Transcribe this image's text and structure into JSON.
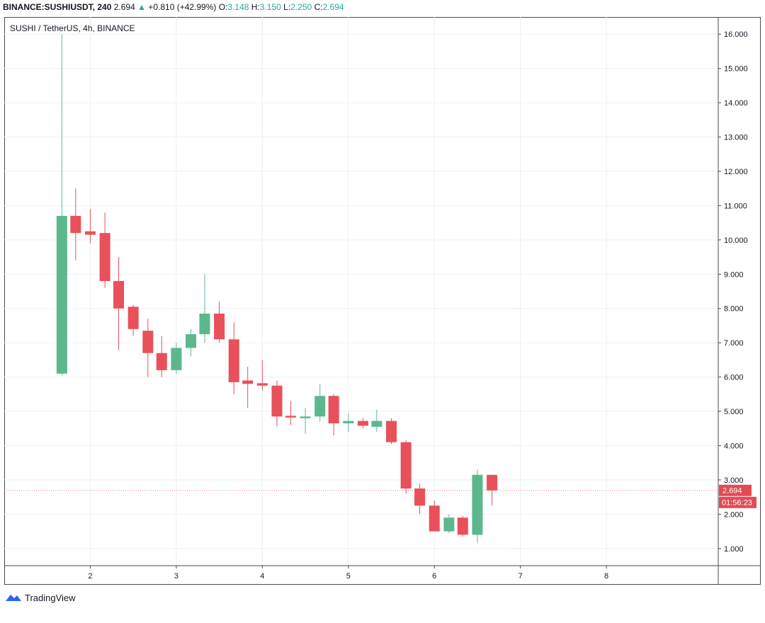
{
  "header": {
    "symbol": "BINANCE:SUSHIUSDT, 240",
    "last": "2.694",
    "change": "+0.810 (+42.99%)",
    "open_label": "O:",
    "open_value": "3.148",
    "high_label": "H:",
    "high_value": "3.150",
    "low_label": "L:",
    "low_value": "2.250",
    "close_label": "C:",
    "close_value": "2.694"
  },
  "brand": {
    "name": "TradingView"
  },
  "colors": {
    "up": "#5cb88c",
    "down": "#e8505b",
    "grid": "#eef0f3",
    "axis": "#4a4a4a",
    "price_tag": "#e24a55"
  },
  "chart_data": {
    "type": "candlestick",
    "title": "SUSHI / TetherUS, 4h, BINANCE",
    "ylim": [
      0.5,
      16.5
    ],
    "xlim": [
      1.0,
      9.3
    ],
    "y_ticks": [
      1,
      2,
      3,
      4,
      5,
      6,
      7,
      8,
      9,
      10,
      11,
      12,
      13,
      14,
      15,
      16
    ],
    "y_tick_labels": [
      "1.000",
      "2.000",
      "3.000",
      "4.000",
      "5.000",
      "6.000",
      "7.000",
      "8.000",
      "9.000",
      "10.000",
      "11.000",
      "12.000",
      "13.000",
      "14.000",
      "15.000",
      "16.000"
    ],
    "x_ticks": [
      2,
      3,
      4,
      5,
      6,
      7,
      8
    ],
    "x_tick_labels": [
      "2",
      "3",
      "4",
      "5",
      "6",
      "7",
      "8"
    ],
    "grid": true,
    "last_price": 2.694,
    "last_price_label": "2.694",
    "countdown_label": "01:56:23",
    "candles": [
      {
        "x": 1.67,
        "o": 6.1,
        "h": 16.0,
        "l": 6.05,
        "c": 10.7
      },
      {
        "x": 1.83,
        "o": 10.7,
        "h": 11.5,
        "l": 9.4,
        "c": 10.2
      },
      {
        "x": 2.0,
        "o": 10.25,
        "h": 10.9,
        "l": 9.9,
        "c": 10.15
      },
      {
        "x": 2.17,
        "o": 10.2,
        "h": 10.8,
        "l": 8.6,
        "c": 8.8
      },
      {
        "x": 2.33,
        "o": 8.8,
        "h": 9.5,
        "l": 6.8,
        "c": 8.0
      },
      {
        "x": 2.5,
        "o": 8.05,
        "h": 8.1,
        "l": 7.2,
        "c": 7.4
      },
      {
        "x": 2.67,
        "o": 7.35,
        "h": 7.7,
        "l": 6.0,
        "c": 6.7
      },
      {
        "x": 2.83,
        "o": 6.7,
        "h": 7.2,
        "l": 6.0,
        "c": 6.2
      },
      {
        "x": 3.0,
        "o": 6.2,
        "h": 7.0,
        "l": 6.1,
        "c": 6.85
      },
      {
        "x": 3.17,
        "o": 6.85,
        "h": 7.4,
        "l": 6.6,
        "c": 7.25
      },
      {
        "x": 3.33,
        "o": 7.25,
        "h": 9.0,
        "l": 7.0,
        "c": 7.85
      },
      {
        "x": 3.5,
        "o": 7.85,
        "h": 8.2,
        "l": 7.0,
        "c": 7.1
      },
      {
        "x": 3.67,
        "o": 7.1,
        "h": 7.6,
        "l": 5.5,
        "c": 5.85
      },
      {
        "x": 3.83,
        "o": 5.9,
        "h": 6.3,
        "l": 5.1,
        "c": 5.8
      },
      {
        "x": 4.0,
        "o": 5.82,
        "h": 6.5,
        "l": 5.6,
        "c": 5.75
      },
      {
        "x": 4.17,
        "o": 5.75,
        "h": 5.9,
        "l": 4.55,
        "c": 4.85
      },
      {
        "x": 4.33,
        "o": 4.87,
        "h": 5.3,
        "l": 4.6,
        "c": 4.82
      },
      {
        "x": 4.5,
        "o": 4.8,
        "h": 5.1,
        "l": 4.35,
        "c": 4.85
      },
      {
        "x": 4.67,
        "o": 4.85,
        "h": 5.8,
        "l": 4.7,
        "c": 5.45
      },
      {
        "x": 4.83,
        "o": 5.45,
        "h": 5.5,
        "l": 4.3,
        "c": 4.65
      },
      {
        "x": 5.0,
        "o": 4.65,
        "h": 4.95,
        "l": 4.4,
        "c": 4.72
      },
      {
        "x": 5.17,
        "o": 4.72,
        "h": 4.8,
        "l": 4.5,
        "c": 4.58
      },
      {
        "x": 5.33,
        "o": 4.55,
        "h": 5.05,
        "l": 4.4,
        "c": 4.72
      },
      {
        "x": 5.5,
        "o": 4.72,
        "h": 4.8,
        "l": 4.05,
        "c": 4.1
      },
      {
        "x": 5.67,
        "o": 4.1,
        "h": 4.15,
        "l": 2.6,
        "c": 2.75
      },
      {
        "x": 5.83,
        "o": 2.75,
        "h": 2.9,
        "l": 2.0,
        "c": 2.25
      },
      {
        "x": 6.0,
        "o": 2.25,
        "h": 2.4,
        "l": 1.5,
        "c": 1.5
      },
      {
        "x": 6.17,
        "o": 1.5,
        "h": 2.0,
        "l": 1.45,
        "c": 1.9
      },
      {
        "x": 6.33,
        "o": 1.9,
        "h": 1.95,
        "l": 1.35,
        "c": 1.4
      },
      {
        "x": 6.5,
        "o": 1.4,
        "h": 3.3,
        "l": 1.15,
        "c": 3.15
      },
      {
        "x": 6.67,
        "o": 3.148,
        "h": 3.15,
        "l": 2.25,
        "c": 2.694
      }
    ]
  }
}
